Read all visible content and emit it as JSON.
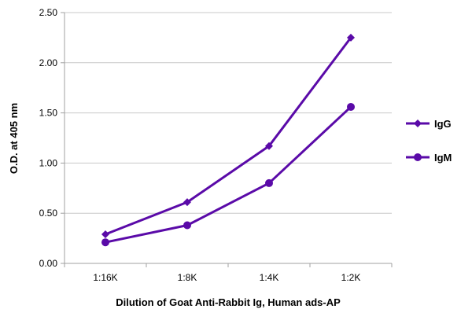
{
  "chart_data": {
    "type": "line",
    "categories": [
      "1:16K",
      "1:8K",
      "1:4K",
      "1:2K"
    ],
    "series": [
      {
        "name": "IgG",
        "values": [
          0.29,
          0.61,
          1.17,
          2.25
        ],
        "marker": "diamond"
      },
      {
        "name": "IgM",
        "values": [
          0.21,
          0.38,
          0.8,
          1.56
        ],
        "marker": "circle"
      }
    ],
    "xlabel": "Dilution of Goat Anti-Rabbit Ig, Human ads-AP",
    "ylabel": "O.D. at 405 nm",
    "ylim": [
      0,
      2.5
    ],
    "yticks": [
      "0.00",
      "0.50",
      "1.00",
      "1.50",
      "2.00",
      "2.50"
    ],
    "grid": "horizontal",
    "legend": "right",
    "color": "#5a0aa8"
  }
}
